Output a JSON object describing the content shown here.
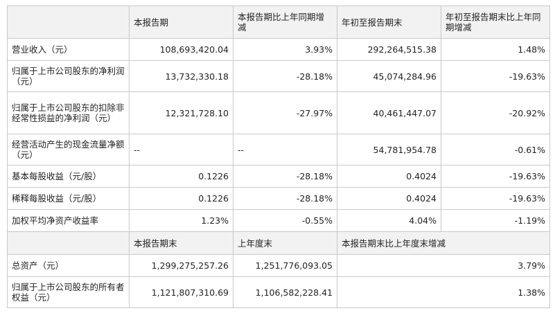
{
  "table": {
    "header1": [
      "",
      "本报告期",
      "本报告期比上年同期增减",
      "年初至报告期末",
      "年初至报告期末比上年同期增减"
    ],
    "rows1": [
      [
        "营业收入（元）",
        "108,693,420.04",
        "3.93%",
        "292,264,515.38",
        "1.48%"
      ],
      [
        "归属于上市公司股东的净利润（元）",
        "13,732,330.18",
        "-28.18%",
        "45,074,284.96",
        "-19.63%"
      ],
      [
        "归属于上市公司股东的扣除非经常性损益的净利润（元）",
        "12,321,728.10",
        "-27.97%",
        "40,461,447.07",
        "-20.92%"
      ],
      [
        "经营活动产生的现金流量净额（元）",
        "--",
        "--",
        "54,781,954.78",
        "-0.61%"
      ],
      [
        "基本每股收益（元/股）",
        "0.1226",
        "-28.18%",
        "0.4024",
        "-19.63%"
      ],
      [
        "稀释每股收益（元/股）",
        "0.1226",
        "-28.18%",
        "0.4024",
        "-19.63%"
      ],
      [
        "加权平均净资产收益率",
        "1.23%",
        "-0.55%",
        "4.04%",
        "-1.19%"
      ]
    ],
    "header2": [
      "",
      "本报告期末",
      "上年度末",
      "本报告期末比上年度末增减"
    ],
    "rows2": [
      [
        "总资产（元）",
        "1,299,275,257.26",
        "1,251,776,093.05",
        "3.79%"
      ],
      [
        "归属于上市公司股东的所有者权益（元）",
        "1,121,807,310.69",
        "1,106,582,228.41",
        "1.38%"
      ]
    ]
  }
}
